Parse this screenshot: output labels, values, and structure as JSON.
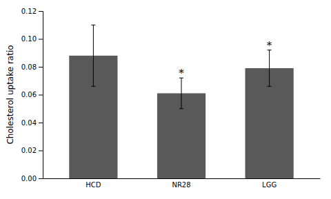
{
  "chart_data": {
    "type": "bar",
    "categories": [
      "HCD",
      "NR28",
      "LGG"
    ],
    "values": [
      0.088,
      0.061,
      0.079
    ],
    "errors": [
      0.022,
      0.011,
      0.013
    ],
    "color": "#595959",
    "ylabel": "Cholesterol uptake ratio",
    "ylim": [
      0,
      0.12
    ],
    "yticks": [
      {
        "value": 0,
        "label": "0.00"
      },
      0.02,
      0.04,
      0.06,
      0.08,
      {
        "value": 0.1,
        "label": "0.10"
      },
      0.12
    ],
    "significance": [
      false,
      true,
      true
    ],
    "significance_label": "*",
    "grid": false
  }
}
